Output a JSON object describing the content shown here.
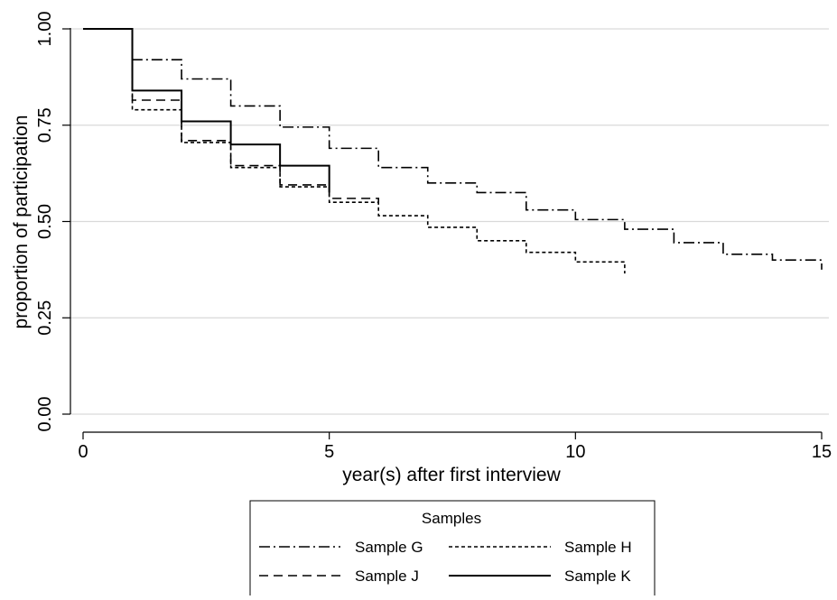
{
  "chart_data": {
    "type": "line",
    "step": true,
    "xlabel": "year(s) after first interview",
    "ylabel": "proportion of participation",
    "xlim": [
      0,
      15
    ],
    "ylim": [
      0,
      1
    ],
    "x_ticks": [
      0,
      5,
      10,
      15
    ],
    "x_tick_labels": [
      "0",
      "5",
      "10",
      "15"
    ],
    "y_ticks": [
      0,
      0.25,
      0.5,
      0.75,
      1
    ],
    "y_tick_labels": [
      "0.00",
      "0.25",
      "0.50",
      "0.75",
      "1.00"
    ],
    "grid": true,
    "legend": {
      "title": "Samples",
      "placement": "bottom",
      "columns": 2
    },
    "series": [
      {
        "name": "Sample G",
        "style": "dashdot",
        "x": [
          0,
          1,
          2,
          3,
          4,
          5,
          6,
          7,
          8,
          9,
          10,
          11,
          12,
          13,
          14,
          15
        ],
        "values": [
          1.0,
          0.92,
          0.87,
          0.8,
          0.745,
          0.69,
          0.64,
          0.6,
          0.575,
          0.53,
          0.505,
          0.48,
          0.445,
          0.415,
          0.4,
          0.375
        ]
      },
      {
        "name": "Sample H",
        "style": "dotted",
        "x": [
          0,
          1,
          2,
          3,
          4,
          5,
          6,
          7,
          8,
          9,
          10,
          11
        ],
        "values": [
          1.0,
          0.79,
          0.705,
          0.64,
          0.59,
          0.55,
          0.515,
          0.485,
          0.45,
          0.42,
          0.395,
          0.365
        ]
      },
      {
        "name": "Sample J",
        "style": "dashed",
        "x": [
          0,
          1,
          2,
          3,
          4,
          5,
          6
        ],
        "values": [
          1.0,
          0.815,
          0.71,
          0.645,
          0.595,
          0.56,
          0.54
        ]
      },
      {
        "name": "Sample K",
        "style": "solid",
        "x": [
          0,
          1,
          2,
          3,
          4,
          5
        ],
        "values": [
          1.0,
          0.84,
          0.76,
          0.7,
          0.645,
          0.575
        ]
      }
    ]
  }
}
